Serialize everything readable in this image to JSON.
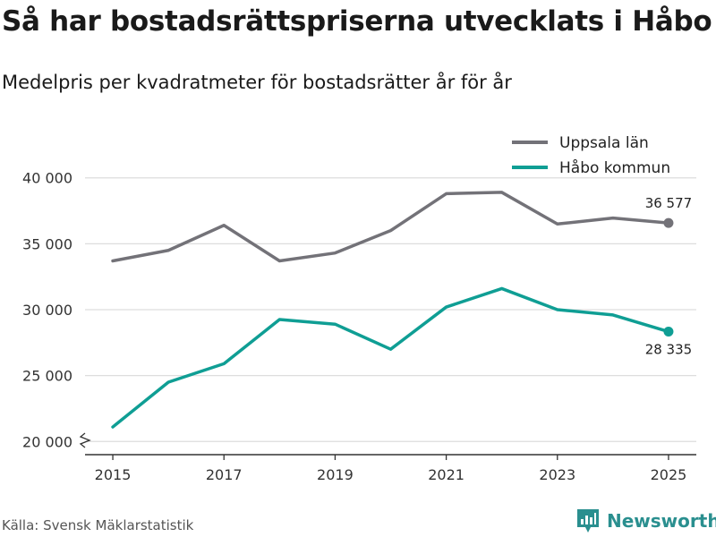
{
  "title": "Så har bostadsrättspriserna utvecklats i Håbo",
  "subtitle": "Medelpris per kvadratmeter för bostadsrätter år för år",
  "source": "Källa: Svensk Mäklarstatistik",
  "brand": "Newsworthy",
  "colors": {
    "uppsala": "#737278",
    "habo": "#0f9e94",
    "grid": "#dddddd",
    "axis": "#333333"
  },
  "chart_data": {
    "type": "line",
    "x": [
      2015,
      2016,
      2017,
      2018,
      2019,
      2020,
      2021,
      2022,
      2023,
      2024,
      2025
    ],
    "xticks": [
      2015,
      2017,
      2019,
      2021,
      2023,
      2025
    ],
    "xtick_labels": [
      "2015",
      "2017",
      "2019",
      "2021",
      "2023",
      "2025"
    ],
    "yticks": [
      20000,
      25000,
      30000,
      35000,
      40000
    ],
    "ytick_labels": [
      "20 000",
      "25 000",
      "30 000",
      "35 000",
      "40 000"
    ],
    "ylim": [
      19000,
      41000
    ],
    "xlim": [
      2014.5,
      2025.5
    ],
    "series": [
      {
        "name": "Uppsala län",
        "key": "uppsala",
        "values": [
          33700,
          34500,
          36400,
          33700,
          34300,
          36000,
          38800,
          38900,
          36500,
          36950,
          36577
        ],
        "end_label": "36 577"
      },
      {
        "name": "Håbo kommun",
        "key": "habo",
        "values": [
          21100,
          24500,
          25900,
          29250,
          28900,
          27000,
          30200,
          31600,
          30000,
          29600,
          28335
        ],
        "end_label": "28 335"
      }
    ],
    "legend": "top-right",
    "axis_break": true
  }
}
